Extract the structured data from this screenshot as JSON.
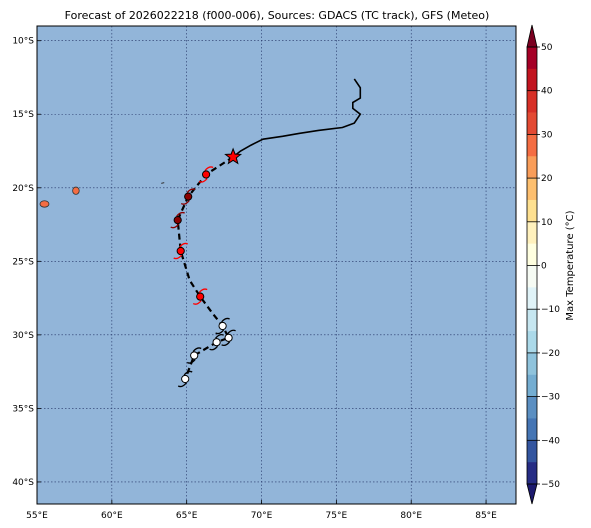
{
  "title": "Forecast of 2026022218 (f000-006), Sources: GDACS (TC track), GFS (Meteo)",
  "colors": {
    "ocean": "#92b5d9",
    "land": "#f46d43",
    "track": "#000000",
    "current_star": "#ff0000",
    "grid": "#223366"
  },
  "map": {
    "lon_range": [
      55,
      87
    ],
    "lat_range": [
      -41.5,
      -9
    ]
  },
  "axes": {
    "x_ticks": [
      {
        "value": 55,
        "label": "55°E"
      },
      {
        "value": 60,
        "label": "60°E"
      },
      {
        "value": 65,
        "label": "65°E"
      },
      {
        "value": 70,
        "label": "70°E"
      },
      {
        "value": 75,
        "label": "75°E"
      },
      {
        "value": 80,
        "label": "80°E"
      },
      {
        "value": 85,
        "label": "85°E"
      }
    ],
    "y_ticks": [
      {
        "value": -10,
        "label": "10°S"
      },
      {
        "value": -15,
        "label": "15°S"
      },
      {
        "value": -20,
        "label": "20°S"
      },
      {
        "value": -25,
        "label": "25°S"
      },
      {
        "value": -30,
        "label": "30°S"
      },
      {
        "value": -35,
        "label": "35°S"
      },
      {
        "value": -40,
        "label": "40°S"
      }
    ]
  },
  "past_track": [
    [
      76.2,
      -12.6
    ],
    [
      76.6,
      -13.2
    ],
    [
      76.6,
      -13.9
    ],
    [
      76.1,
      -14.2
    ],
    [
      76.1,
      -14.6
    ],
    [
      76.6,
      -15.0
    ],
    [
      76.2,
      -15.6
    ],
    [
      75.4,
      -15.9
    ],
    [
      73.8,
      -16.1
    ],
    [
      72.5,
      -16.3
    ],
    [
      71.4,
      -16.5
    ],
    [
      70.1,
      -16.7
    ],
    [
      69.3,
      -17.1
    ],
    [
      68.6,
      -17.5
    ],
    [
      68.1,
      -17.9
    ]
  ],
  "current_position": {
    "lon": 68.1,
    "lat": -17.9
  },
  "forecast_track": [
    [
      68.1,
      -17.9
    ],
    [
      66.3,
      -19.1
    ],
    [
      65.1,
      -20.6
    ],
    [
      64.4,
      -22.2
    ],
    [
      64.6,
      -24.3
    ],
    [
      65.2,
      -26.3
    ],
    [
      65.9,
      -27.4
    ],
    [
      66.7,
      -28.5
    ],
    [
      67.4,
      -29.4
    ],
    [
      67.8,
      -30.2
    ],
    [
      67.0,
      -30.5
    ],
    [
      65.5,
      -31.4
    ],
    [
      64.9,
      -33.0
    ]
  ],
  "forecast_points": [
    {
      "lon": 66.3,
      "lat": -19.1,
      "color": "#ff0000"
    },
    {
      "lon": 65.1,
      "lat": -20.6,
      "color": "#8b0000"
    },
    {
      "lon": 64.4,
      "lat": -22.2,
      "color": "#8b0000"
    },
    {
      "lon": 64.6,
      "lat": -24.3,
      "color": "#ff0000"
    },
    {
      "lon": 65.9,
      "lat": -27.4,
      "color": "#ff0000"
    },
    {
      "lon": 67.4,
      "lat": -29.4,
      "color": "#ffffff"
    },
    {
      "lon": 67.8,
      "lat": -30.2,
      "color": "#ffffff"
    },
    {
      "lon": 67.0,
      "lat": -30.5,
      "color": "#ffffff"
    },
    {
      "lon": 65.5,
      "lat": -31.4,
      "color": "#ffffff"
    },
    {
      "lon": 64.9,
      "lat": -33.0,
      "color": "#ffffff"
    }
  ],
  "islands": [
    {
      "name": "reunion",
      "lon": 55.5,
      "lat": -21.1,
      "rx": 0.3,
      "ry": 0.22
    },
    {
      "name": "mauritius",
      "lon": 57.6,
      "lat": -20.2,
      "rx": 0.22,
      "ry": 0.25
    }
  ],
  "colorbar": {
    "label": "Max Temperature (°C)",
    "range": [
      -50,
      50
    ],
    "ticks": [
      {
        "value": 50,
        "label": "50"
      },
      {
        "value": 40,
        "label": "40"
      },
      {
        "value": 30,
        "label": "30"
      },
      {
        "value": 20,
        "label": "20"
      },
      {
        "value": 10,
        "label": "10"
      },
      {
        "value": 0,
        "label": "0"
      },
      {
        "value": -10,
        "label": "−10"
      },
      {
        "value": -20,
        "label": "−20"
      },
      {
        "value": -30,
        "label": "−30"
      },
      {
        "value": -40,
        "label": "−40"
      },
      {
        "value": -50,
        "label": "−50"
      }
    ],
    "bands": [
      {
        "from": 45,
        "to": 50,
        "color": "#a50026"
      },
      {
        "from": 40,
        "to": 45,
        "color": "#c2141f"
      },
      {
        "from": 35,
        "to": 40,
        "color": "#d73027"
      },
      {
        "from": 30,
        "to": 35,
        "color": "#e34a33"
      },
      {
        "from": 25,
        "to": 30,
        "color": "#f46d43"
      },
      {
        "from": 20,
        "to": 25,
        "color": "#f99d59"
      },
      {
        "from": 15,
        "to": 20,
        "color": "#fdbf6f"
      },
      {
        "from": 10,
        "to": 15,
        "color": "#fee090"
      },
      {
        "from": 5,
        "to": 10,
        "color": "#fff1bd"
      },
      {
        "from": 0,
        "to": 5,
        "color": "#ffffe0"
      },
      {
        "from": -5,
        "to": 0,
        "color": "#f6fbf4"
      },
      {
        "from": -10,
        "to": -5,
        "color": "#e0f3f8"
      },
      {
        "from": -15,
        "to": -10,
        "color": "#c6e6f0"
      },
      {
        "from": -20,
        "to": -15,
        "color": "#abd9e9"
      },
      {
        "from": -25,
        "to": -20,
        "color": "#8fc3dc"
      },
      {
        "from": -30,
        "to": -25,
        "color": "#74add1"
      },
      {
        "from": -35,
        "to": -30,
        "color": "#5b8fc2"
      },
      {
        "from": -40,
        "to": -35,
        "color": "#4575b4"
      },
      {
        "from": -45,
        "to": -40,
        "color": "#33559f"
      },
      {
        "from": -50,
        "to": -45,
        "color": "#262c84"
      }
    ],
    "over_color": "#7a0020",
    "under_color": "#1c1a6e"
  }
}
